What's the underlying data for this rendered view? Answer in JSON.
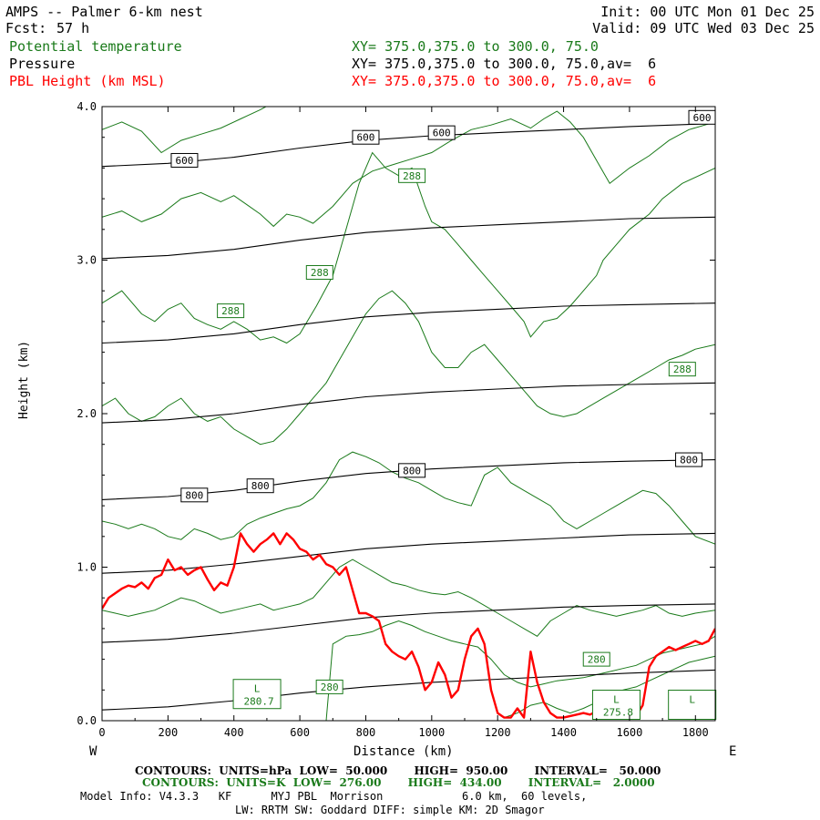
{
  "header": {
    "title": "AMPS -- Palmer 6-km nest",
    "fcst_label": "Fcst:",
    "fcst_value": "57 h",
    "init": "Init: 00 UTC Mon 01 Dec 25",
    "valid": "Valid: 09 UTC Wed 03 Dec 25",
    "fields": [
      {
        "name": "Potential temperature",
        "xy": "XY= 375.0,375.0 to 300.0, 75.0",
        "color": "#1a7a1a"
      },
      {
        "name": "Pressure",
        "xy": "XY= 375.0,375.0 to 300.0, 75.0,av=  6",
        "color": "#000000"
      },
      {
        "name": "PBL Height (km MSL)",
        "xy": "XY= 375.0,375.0 to 300.0, 75.0,av=  6",
        "color": "#ff0000"
      }
    ]
  },
  "chart_data": {
    "type": "line",
    "xlabel": "Distance (km)",
    "ylabel": "Height (km)",
    "xlim": [
      0,
      1860
    ],
    "ylim": [
      0,
      4.0
    ],
    "x_ticks": [
      "0",
      "200",
      "400",
      "600",
      "800",
      "1000",
      "1200",
      "1400",
      "1600",
      "1800"
    ],
    "y_ticks": [
      "0.0",
      "1.0",
      "2.0",
      "3.0",
      "4.0"
    ],
    "x_tick_values": [
      0,
      200,
      400,
      600,
      800,
      1000,
      1200,
      1400,
      1600,
      1800
    ],
    "y_tick_values": [
      0,
      1,
      2,
      3,
      4
    ],
    "left_end": "W",
    "right_end": "E",
    "pressure_contours": {
      "color": "#000000",
      "x": [
        0,
        200,
        400,
        600,
        800,
        1000,
        1200,
        1400,
        1600,
        1860
      ],
      "levels": [
        {
          "y": [
            0.07,
            0.09,
            0.13,
            0.18,
            0.22,
            0.25,
            0.27,
            0.29,
            0.31,
            0.33
          ]
        },
        {
          "y": [
            0.51,
            0.53,
            0.57,
            0.62,
            0.67,
            0.7,
            0.72,
            0.74,
            0.75,
            0.76
          ]
        },
        {
          "y": [
            0.96,
            0.98,
            1.02,
            1.07,
            1.12,
            1.15,
            1.17,
            1.19,
            1.21,
            1.22
          ]
        },
        {
          "y": [
            1.44,
            1.46,
            1.5,
            1.56,
            1.61,
            1.64,
            1.66,
            1.68,
            1.69,
            1.7
          ]
        },
        {
          "y": [
            1.94,
            1.96,
            2.0,
            2.06,
            2.11,
            2.14,
            2.16,
            2.18,
            2.19,
            2.2
          ]
        },
        {
          "y": [
            2.46,
            2.48,
            2.52,
            2.58,
            2.63,
            2.66,
            2.68,
            2.7,
            2.71,
            2.72
          ]
        },
        {
          "y": [
            3.01,
            3.03,
            3.07,
            3.13,
            3.18,
            3.21,
            3.23,
            3.25,
            3.27,
            3.28
          ]
        },
        {
          "y": [
            3.61,
            3.63,
            3.67,
            3.73,
            3.78,
            3.81,
            3.83,
            3.85,
            3.87,
            3.89
          ]
        }
      ],
      "labels": [
        {
          "text": "600",
          "x": 250,
          "y": 3.65
        },
        {
          "text": "600",
          "x": 800,
          "y": 3.8
        },
        {
          "text": "600",
          "x": 1030,
          "y": 3.83
        },
        {
          "text": "600",
          "x": 1820,
          "y": 3.93
        },
        {
          "text": "800",
          "x": 280,
          "y": 1.47
        },
        {
          "text": "800",
          "x": 480,
          "y": 1.53
        },
        {
          "text": "800",
          "x": 940,
          "y": 1.63
        },
        {
          "text": "800",
          "x": 1780,
          "y": 1.7
        }
      ]
    },
    "theta_contours": {
      "color": "#1a7a1a",
      "lines": [
        {
          "x": [
            0,
            60,
            120,
            180,
            240,
            300,
            360,
            420,
            480,
            540,
            600,
            660,
            700,
            760,
            820,
            880,
            940,
            1000,
            1060,
            1120,
            1160,
            1200,
            1240,
            1300,
            1340,
            1400,
            1460,
            1520,
            1580,
            1640,
            1700,
            1760,
            1860
          ],
          "y": [
            3.85,
            3.9,
            3.84,
            3.7,
            3.78,
            3.82,
            3.86,
            3.92,
            3.98,
            4.05,
            4.2,
            4.3,
            4.3,
            4.3,
            4.3,
            4.3,
            4.3,
            4.3,
            4.3,
            4.3,
            4.3,
            4.3,
            4.3,
            4.3,
            4.3,
            4.3,
            4.3,
            4.3,
            4.3,
            4.3,
            4.3,
            4.3,
            4.3
          ]
        },
        {
          "x": [
            0,
            60,
            120,
            180,
            240,
            300,
            360,
            400,
            440,
            480,
            520,
            560,
            600,
            640,
            700,
            760,
            820,
            880,
            940,
            1000,
            1060,
            1120,
            1180,
            1240,
            1300,
            1340,
            1380,
            1420,
            1460,
            1500,
            1540,
            1600,
            1660,
            1720,
            1780,
            1860
          ],
          "y": [
            3.28,
            3.32,
            3.25,
            3.3,
            3.4,
            3.44,
            3.38,
            3.42,
            3.36,
            3.3,
            3.22,
            3.3,
            3.28,
            3.24,
            3.35,
            3.5,
            3.58,
            3.62,
            3.66,
            3.7,
            3.78,
            3.85,
            3.88,
            3.92,
            3.86,
            3.92,
            3.97,
            3.9,
            3.8,
            3.65,
            3.5,
            3.6,
            3.68,
            3.78,
            3.85,
            3.9
          ]
        },
        {
          "x": [
            0,
            60,
            120,
            160,
            200,
            240,
            280,
            320,
            360,
            400,
            440,
            480,
            520,
            560,
            600,
            650,
            700,
            740,
            780,
            820,
            860,
            900,
            940,
            980,
            1000,
            1040,
            1080,
            1120,
            1160,
            1200,
            1240,
            1280,
            1300,
            1320,
            1340,
            1380,
            1420,
            1460,
            1500,
            1520,
            1560,
            1600,
            1660,
            1700,
            1760,
            1860
          ],
          "y": [
            2.72,
            2.8,
            2.65,
            2.6,
            2.68,
            2.72,
            2.62,
            2.58,
            2.55,
            2.6,
            2.55,
            2.48,
            2.5,
            2.46,
            2.52,
            2.7,
            2.9,
            3.2,
            3.5,
            3.7,
            3.6,
            3.55,
            3.6,
            3.35,
            3.25,
            3.2,
            3.1,
            3.0,
            2.9,
            2.8,
            2.7,
            2.6,
            2.5,
            2.55,
            2.6,
            2.62,
            2.7,
            2.8,
            2.9,
            3.0,
            3.1,
            3.2,
            3.3,
            3.4,
            3.5,
            3.6
          ]
        },
        {
          "x": [
            0,
            40,
            80,
            120,
            160,
            200,
            240,
            280,
            320,
            360,
            400,
            440,
            480,
            520,
            560,
            600,
            640,
            680,
            720,
            760,
            800,
            840,
            880,
            920,
            960,
            1000,
            1040,
            1080,
            1120,
            1160,
            1200,
            1240,
            1280,
            1320,
            1360,
            1400,
            1440,
            1480,
            1520,
            1560,
            1600,
            1640,
            1680,
            1720,
            1760,
            1800,
            1860
          ],
          "y": [
            2.05,
            2.1,
            2.0,
            1.95,
            1.98,
            2.05,
            2.1,
            2.0,
            1.95,
            1.98,
            1.9,
            1.85,
            1.8,
            1.82,
            1.9,
            2.0,
            2.1,
            2.2,
            2.35,
            2.5,
            2.65,
            2.75,
            2.8,
            2.72,
            2.6,
            2.4,
            2.3,
            2.3,
            2.4,
            2.45,
            2.35,
            2.25,
            2.15,
            2.05,
            2.0,
            1.98,
            2.0,
            2.05,
            2.1,
            2.15,
            2.2,
            2.25,
            2.3,
            2.35,
            2.38,
            2.42,
            2.45
          ]
        },
        {
          "x": [
            0,
            40,
            80,
            120,
            160,
            200,
            240,
            280,
            320,
            360,
            400,
            440,
            480,
            520,
            560,
            600,
            640,
            680,
            720,
            760,
            800,
            840,
            880,
            920,
            960,
            1000,
            1040,
            1080,
            1120,
            1160,
            1200,
            1240,
            1280,
            1320,
            1360,
            1400,
            1440,
            1480,
            1520,
            1560,
            1600,
            1640,
            1680,
            1720,
            1760,
            1800,
            1860
          ],
          "y": [
            1.3,
            1.28,
            1.25,
            1.28,
            1.25,
            1.2,
            1.18,
            1.25,
            1.22,
            1.18,
            1.2,
            1.28,
            1.32,
            1.35,
            1.38,
            1.4,
            1.45,
            1.55,
            1.7,
            1.75,
            1.72,
            1.68,
            1.62,
            1.58,
            1.55,
            1.5,
            1.45,
            1.42,
            1.4,
            1.6,
            1.65,
            1.55,
            1.5,
            1.45,
            1.4,
            1.3,
            1.25,
            1.3,
            1.35,
            1.4,
            1.45,
            1.5,
            1.48,
            1.4,
            1.3,
            1.2,
            1.15
          ]
        },
        {
          "x": [
            0,
            40,
            80,
            120,
            160,
            200,
            240,
            280,
            320,
            360,
            400,
            440,
            480,
            520,
            560,
            600,
            640,
            680,
            720,
            760,
            800,
            840,
            880,
            920,
            960,
            1000,
            1040,
            1080,
            1120,
            1160,
            1200,
            1240,
            1280,
            1320,
            1360,
            1400,
            1440,
            1480,
            1520,
            1560,
            1600,
            1640,
            1680,
            1720,
            1760,
            1800,
            1860
          ],
          "y": [
            0.72,
            0.7,
            0.68,
            0.7,
            0.72,
            0.76,
            0.8,
            0.78,
            0.74,
            0.7,
            0.72,
            0.74,
            0.76,
            0.72,
            0.74,
            0.76,
            0.8,
            0.9,
            1.0,
            1.05,
            1.0,
            0.95,
            0.9,
            0.88,
            0.85,
            0.83,
            0.82,
            0.84,
            0.8,
            0.75,
            0.7,
            0.65,
            0.6,
            0.55,
            0.65,
            0.7,
            0.75,
            0.72,
            0.7,
            0.68,
            0.7,
            0.72,
            0.75,
            0.7,
            0.68,
            0.7,
            0.72
          ]
        },
        {
          "x": [
            680,
            700,
            740,
            780,
            820,
            860,
            900,
            940,
            980,
            1020,
            1060,
            1100,
            1140,
            1180,
            1220,
            1260,
            1300,
            1340,
            1380,
            1420,
            1460,
            1500,
            1540,
            1580,
            1620,
            1660,
            1700,
            1740,
            1780,
            1820,
            1860
          ],
          "y": [
            0.0,
            0.5,
            0.55,
            0.56,
            0.58,
            0.62,
            0.65,
            0.62,
            0.58,
            0.55,
            0.52,
            0.5,
            0.48,
            0.4,
            0.3,
            0.25,
            0.22,
            0.24,
            0.26,
            0.27,
            0.28,
            0.3,
            0.32,
            0.34,
            0.36,
            0.4,
            0.44,
            0.46,
            0.48,
            0.5,
            0.55
          ]
        },
        {
          "x": [
            1220,
            1260,
            1300,
            1340,
            1380,
            1420,
            1460,
            1500,
            1540,
            1580,
            1620,
            1660,
            1700,
            1740,
            1780,
            1820,
            1860
          ],
          "y": [
            0.02,
            0.05,
            0.1,
            0.12,
            0.08,
            0.05,
            0.08,
            0.12,
            0.15,
            0.2,
            0.22,
            0.26,
            0.3,
            0.34,
            0.38,
            0.4,
            0.42
          ]
        }
      ],
      "labels": [
        {
          "text": "288",
          "x": 940,
          "y": 3.55
        },
        {
          "text": "288",
          "x": 660,
          "y": 2.92
        },
        {
          "text": "288",
          "x": 390,
          "y": 2.67
        },
        {
          "text": "288",
          "x": 1760,
          "y": 2.29
        },
        {
          "text": "280",
          "x": 690,
          "y": 0.22
        },
        {
          "text": "280",
          "x": 1500,
          "y": 0.4
        }
      ],
      "box_labels": [
        {
          "letter": "L",
          "value": "280.7",
          "x": 470,
          "y": 0.15
        },
        {
          "letter": "L",
          "value": "275.8",
          "x": 1560,
          "y": 0.08
        },
        {
          "letter": "L",
          "value": "",
          "x": 1790,
          "y": 0.08
        }
      ]
    },
    "pbl_height": {
      "color": "#ff0000",
      "x": [
        0,
        20,
        40,
        60,
        80,
        100,
        120,
        140,
        160,
        180,
        200,
        220,
        240,
        260,
        280,
        300,
        320,
        340,
        360,
        380,
        400,
        420,
        440,
        460,
        480,
        500,
        520,
        540,
        560,
        580,
        600,
        620,
        640,
        660,
        680,
        700,
        720,
        740,
        760,
        780,
        800,
        820,
        840,
        860,
        880,
        900,
        920,
        940,
        960,
        980,
        1000,
        1020,
        1040,
        1060,
        1080,
        1100,
        1120,
        1140,
        1160,
        1180,
        1200,
        1220,
        1240,
        1260,
        1280,
        1300,
        1320,
        1340,
        1360,
        1380,
        1400,
        1420,
        1440,
        1460,
        1480,
        1500,
        1520,
        1540,
        1560,
        1580,
        1600,
        1620,
        1640,
        1660,
        1680,
        1700,
        1720,
        1740,
        1760,
        1780,
        1800,
        1820,
        1840,
        1860
      ],
      "y": [
        0.73,
        0.8,
        0.83,
        0.86,
        0.88,
        0.87,
        0.9,
        0.86,
        0.93,
        0.95,
        1.05,
        0.98,
        1.0,
        0.95,
        0.98,
        1.0,
        0.92,
        0.85,
        0.9,
        0.88,
        1.0,
        1.22,
        1.15,
        1.1,
        1.15,
        1.18,
        1.22,
        1.15,
        1.22,
        1.18,
        1.12,
        1.1,
        1.05,
        1.08,
        1.02,
        1.0,
        0.95,
        1.0,
        0.85,
        0.7,
        0.7,
        0.68,
        0.65,
        0.5,
        0.45,
        0.42,
        0.4,
        0.45,
        0.35,
        0.2,
        0.25,
        0.38,
        0.3,
        0.15,
        0.2,
        0.4,
        0.55,
        0.6,
        0.5,
        0.2,
        0.05,
        0.02,
        0.02,
        0.08,
        0.02,
        0.45,
        0.25,
        0.12,
        0.05,
        0.02,
        0.02,
        0.03,
        0.04,
        0.05,
        0.04,
        0.06,
        0.05,
        0.04,
        0.03,
        0.04,
        0.05,
        0.03,
        0.1,
        0.35,
        0.42,
        0.45,
        0.48,
        0.46,
        0.48,
        0.5,
        0.52,
        0.5,
        0.52,
        0.6
      ]
    }
  },
  "footer": {
    "line1": "CONTOURS:  UNITS=hPa  LOW=  50.000       HIGH=  950.00       INTERVAL=   50.000",
    "line2": "CONTOURS:  UNITS=K  LOW=  276.00       HIGH=  434.00       INTERVAL=   2.0000",
    "line3": "Model Info: V4.3.3   KF      MYJ PBL  Morrison            6.0 km,  60 levels,",
    "line4": "LW: RRTM SW: Goddard DIFF: simple KM: 2D Smagor"
  }
}
